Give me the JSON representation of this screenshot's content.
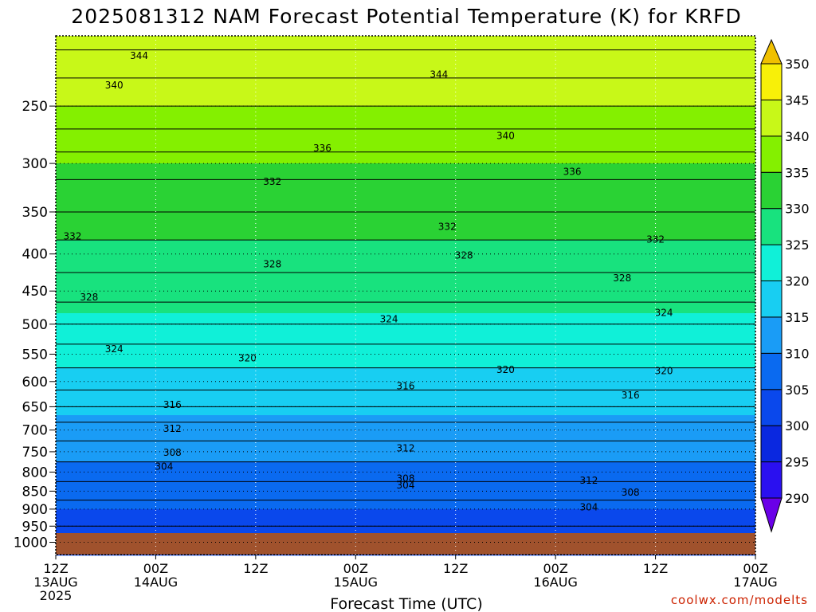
{
  "chart_data": {
    "type": "heatmap",
    "title": "2025081312 NAM Forecast Potential Temperature (K) for KRFD",
    "xlabel": "Forecast Time (UTC)",
    "ylabel": "",
    "x_ticks": [
      {
        "hour": 0,
        "line1": "12Z",
        "line2": "13AUG",
        "line3": "2025"
      },
      {
        "hour": 12,
        "line1": "00Z",
        "line2": "14AUG",
        "line3": ""
      },
      {
        "hour": 24,
        "line1": "12Z",
        "line2": "",
        "line3": ""
      },
      {
        "hour": 36,
        "line1": "00Z",
        "line2": "15AUG",
        "line3": ""
      },
      {
        "hour": 48,
        "line1": "12Z",
        "line2": "",
        "line3": ""
      },
      {
        "hour": 60,
        "line1": "00Z",
        "line2": "16AUG",
        "line3": ""
      },
      {
        "hour": 72,
        "line1": "12Z",
        "line2": "",
        "line3": ""
      },
      {
        "hour": 84,
        "line1": "00Z",
        "line2": "17AUG",
        "line3": ""
      }
    ],
    "xlim_hours": [
      0,
      84
    ],
    "y_ticks": [
      250,
      300,
      350,
      400,
      450,
      500,
      550,
      600,
      650,
      700,
      750,
      800,
      850,
      900,
      950,
      1000
    ],
    "ylim_hPa": [
      200,
      1040
    ],
    "y_scale": "log-pressure",
    "grid": true,
    "colorbar": {
      "levels": [
        290,
        295,
        300,
        305,
        310,
        315,
        320,
        325,
        330,
        335,
        340,
        345,
        350
      ],
      "colors": [
        "#6a00e8",
        "#2a10f0",
        "#0a28e0",
        "#0a48ec",
        "#0a6af0",
        "#1a9cf6",
        "#18cef2",
        "#10f0d8",
        "#18e27e",
        "#2ad234",
        "#84f000",
        "#c8f818",
        "#f8f008",
        "#f0c000"
      ]
    },
    "potential_temperature_profile_K": {
      "pressure_hPa": [
        1000,
        950,
        900,
        850,
        800,
        750,
        700,
        650,
        600,
        550,
        500,
        450,
        400,
        350,
        300,
        250,
        200
      ],
      "theta_K": [
        303,
        304,
        305,
        307,
        309,
        311,
        313,
        316,
        319,
        321,
        324,
        327,
        329,
        332,
        335,
        340,
        345
      ]
    },
    "contours_labeled": [
      {
        "value": 344,
        "hour": 10,
        "p": 213
      },
      {
        "value": 344,
        "hour": 46,
        "p": 226
      },
      {
        "value": 340,
        "hour": 7,
        "p": 234
      },
      {
        "value": 340,
        "hour": 54,
        "p": 275
      },
      {
        "value": 336,
        "hour": 32,
        "p": 286
      },
      {
        "value": 336,
        "hour": 62,
        "p": 308
      },
      {
        "value": 332,
        "hour": 26,
        "p": 318
      },
      {
        "value": 332,
        "hour": 2,
        "p": 378
      },
      {
        "value": 332,
        "hour": 47,
        "p": 367
      },
      {
        "value": 332,
        "hour": 72,
        "p": 382
      },
      {
        "value": 328,
        "hour": 26,
        "p": 413
      },
      {
        "value": 328,
        "hour": 49,
        "p": 402
      },
      {
        "value": 328,
        "hour": 68,
        "p": 432
      },
      {
        "value": 328,
        "hour": 4,
        "p": 459
      },
      {
        "value": 324,
        "hour": 40,
        "p": 492
      },
      {
        "value": 324,
        "hour": 73,
        "p": 482
      },
      {
        "value": 324,
        "hour": 7,
        "p": 541
      },
      {
        "value": 320,
        "hour": 23,
        "p": 557
      },
      {
        "value": 320,
        "hour": 54,
        "p": 578
      },
      {
        "value": 320,
        "hour": 73,
        "p": 580
      },
      {
        "value": 316,
        "hour": 42,
        "p": 609
      },
      {
        "value": 316,
        "hour": 14,
        "p": 646
      },
      {
        "value": 316,
        "hour": 69,
        "p": 627
      },
      {
        "value": 312,
        "hour": 14,
        "p": 697
      },
      {
        "value": 312,
        "hour": 42,
        "p": 742
      },
      {
        "value": 312,
        "hour": 64,
        "p": 822
      },
      {
        "value": 308,
        "hour": 14,
        "p": 752
      },
      {
        "value": 308,
        "hour": 42,
        "p": 817
      },
      {
        "value": 308,
        "hour": 69,
        "p": 854
      },
      {
        "value": 304,
        "hour": 13,
        "p": 786
      },
      {
        "value": 304,
        "hour": 42,
        "p": 834
      },
      {
        "value": 304,
        "hour": 64,
        "p": 895
      }
    ],
    "ground_fill": true
  },
  "credit": "coolwx.com/modelts"
}
